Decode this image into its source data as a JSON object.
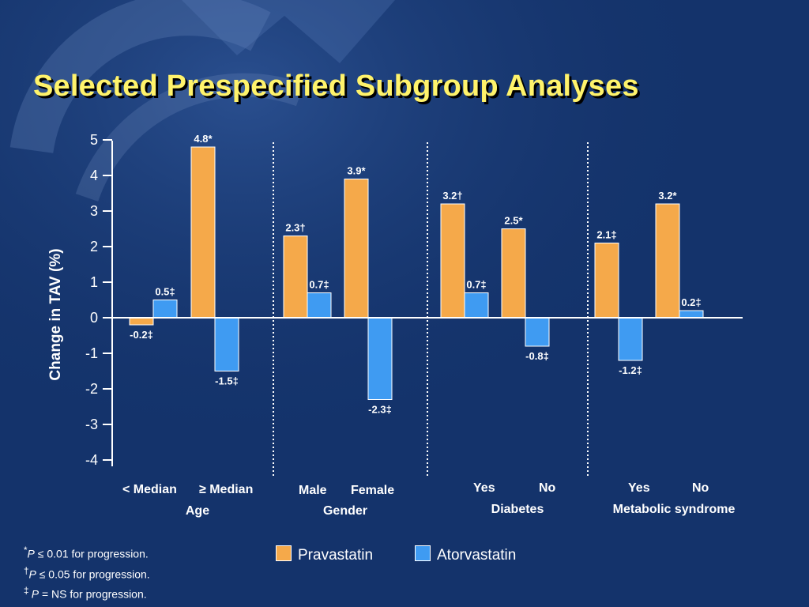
{
  "slide": {
    "title": "Selected Prespecified Subgroup Analyses",
    "colors": {
      "background": "#14336b",
      "title": "#fff36b",
      "pravastatin": "#f5a94a",
      "atorvastatin": "#3f9bf2"
    }
  },
  "chart_data": {
    "type": "bar",
    "ylabel": "Change in TAV (%)",
    "ylim": [
      -4,
      5
    ],
    "yticks": [
      5,
      4,
      3,
      2,
      1,
      0,
      -1,
      -2,
      -3,
      -4
    ],
    "categories": [
      "< Median",
      "≥ Median",
      "Male",
      "Female",
      "Yes",
      "No",
      "Yes",
      "No"
    ],
    "groups": [
      {
        "name": "Age",
        "categories": [
          "< Median",
          "≥ Median"
        ]
      },
      {
        "name": "Gender",
        "categories": [
          "Male",
          "Female"
        ]
      },
      {
        "name": "Diabetes",
        "categories": [
          "Yes",
          "No"
        ]
      },
      {
        "name": "Metabolic syndrome",
        "categories": [
          "Yes",
          "No"
        ]
      }
    ],
    "series": [
      {
        "name": "Pravastatin",
        "color": "#f5a94a",
        "values": [
          -0.2,
          4.8,
          2.3,
          3.9,
          3.2,
          2.5,
          2.1,
          3.2
        ],
        "labels": [
          "-0.2‡",
          "4.8*",
          "2.3†",
          "3.9*",
          "3.2†",
          "2.5*",
          "2.1‡",
          "3.2*"
        ]
      },
      {
        "name": "Atorvastatin",
        "color": "#3f9bf2",
        "values": [
          0.5,
          -1.5,
          0.7,
          -2.3,
          0.7,
          -0.8,
          -1.2,
          0.2
        ],
        "labels": [
          "0.5‡",
          "-1.5‡",
          "0.7‡",
          "-2.3‡",
          "0.7‡",
          "-0.8‡",
          "-1.2‡",
          "0.2‡"
        ]
      }
    ],
    "grid": false,
    "legend": "bottom",
    "group_separators": "dotted"
  },
  "footnotes": {
    "fn1": {
      "sym": "*",
      "p": "P",
      "rest": " ≤ 0.01 for progression."
    },
    "fn2": {
      "sym": "†",
      "p": "P",
      "rest": " ≤ 0.05 for progression."
    },
    "fn3": {
      "sym": "‡ ",
      "p": "P",
      "rest": " = NS for progression."
    }
  }
}
